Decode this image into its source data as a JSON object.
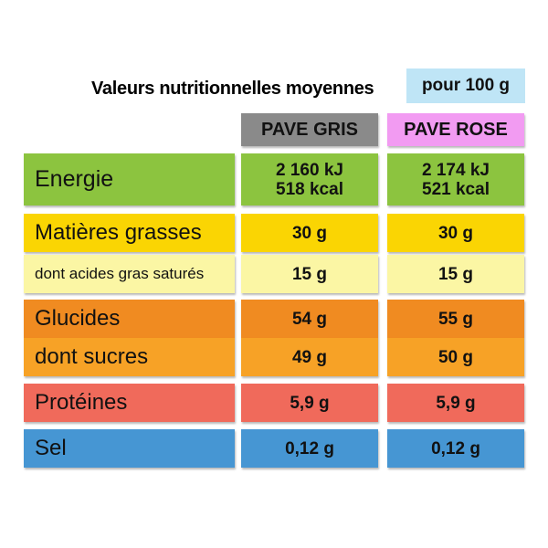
{
  "title": "Valeurs nutritionnelles moyennes",
  "per_label": "pour 100 g",
  "columns": [
    "PAVE GRIS",
    "PAVE ROSE"
  ],
  "colors": {
    "per_bg": "#bfe5f6",
    "gris_header": "#8a8a8a",
    "rose_header": "#f29bf2",
    "energie": "#8cc43f",
    "matieres": "#fad503",
    "acides": "#fbf6a4",
    "glucides": "#f08b21",
    "sucres": "#f7a226",
    "proteines": "#f06a5b",
    "sel": "#4696d3"
  },
  "rows": {
    "energie": {
      "label": "Energie",
      "gris": [
        "2 160 kJ",
        "518 kcal"
      ],
      "rose": [
        "2 174 kJ",
        "521 kcal"
      ]
    },
    "matieres": {
      "label": "Matières grasses",
      "gris": "30 g",
      "rose": "30 g"
    },
    "acides": {
      "label": "dont acides gras saturés",
      "gris": "15 g",
      "rose": "15 g"
    },
    "glucides": {
      "label": "Glucides",
      "gris": "54 g",
      "rose": "55 g"
    },
    "sucres": {
      "label": "dont sucres",
      "gris": "49 g",
      "rose": "50 g"
    },
    "proteines": {
      "label": "Protéines",
      "gris": "5,9 g",
      "rose": "5,9 g"
    },
    "sel": {
      "label": "Sel",
      "gris": "0,12 g",
      "rose": "0,12 g"
    }
  }
}
